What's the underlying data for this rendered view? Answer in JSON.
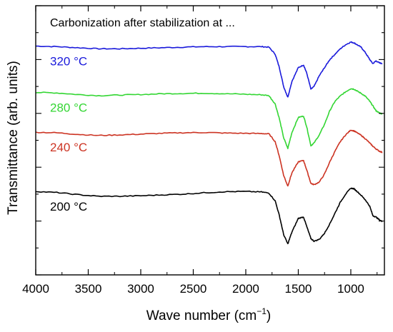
{
  "chart_data": {
    "type": "line",
    "title": "Carbonization after stabilization at ...",
    "xlabel": "Wave number (cm",
    "xlabel_superscript": "−1",
    "xlabel_suffix": ")",
    "ylabel": "Transmittance (arb. units)",
    "xlim": [
      4000,
      680
    ],
    "x_reversed": true,
    "ylim": [
      0,
      100
    ],
    "y_tick_labels_shown": false,
    "xticks": [
      "4000",
      "3500",
      "3000",
      "2500",
      "2000",
      "1500",
      "1000"
    ],
    "xtick_values": [
      4000,
      3500,
      3000,
      2500,
      2000,
      1500,
      1000
    ],
    "grid": false,
    "legend": "inline labels",
    "series": [
      {
        "name": "320 °C",
        "color": "#1a1adb",
        "x": [
          4000,
          3800,
          3600,
          3400,
          3200,
          3000,
          2800,
          2600,
          2400,
          2200,
          2000,
          1850,
          1780,
          1720,
          1680,
          1640,
          1600,
          1560,
          1500,
          1450,
          1420,
          1380,
          1350,
          1300,
          1250,
          1200,
          1150,
          1100,
          1050,
          1000,
          970,
          940,
          900,
          860,
          820,
          790,
          760,
          730,
          700
        ],
        "y": [
          85,
          84.8,
          84.4,
          84,
          84,
          84.2,
          84.4,
          84.6,
          84.8,
          84.8,
          84.8,
          84.8,
          84.6,
          82,
          77,
          70,
          66,
          72,
          77,
          78,
          75,
          69,
          70,
          74,
          77,
          80,
          82,
          84,
          85.5,
          86.5,
          86.2,
          85.5,
          84.5,
          82.5,
          80,
          78.5,
          79.5,
          78.8,
          78.5
        ]
      },
      {
        "name": "280 °C",
        "color": "#33d633",
        "x": [
          4000,
          3800,
          3600,
          3400,
          3200,
          3000,
          2800,
          2600,
          2400,
          2200,
          2000,
          1850,
          1780,
          1720,
          1680,
          1640,
          1600,
          1560,
          1500,
          1450,
          1420,
          1380,
          1350,
          1300,
          1250,
          1200,
          1150,
          1100,
          1050,
          1000,
          970,
          940,
          900,
          860,
          820,
          790,
          760,
          730,
          700
        ],
        "y": [
          67.8,
          67.6,
          67,
          66.6,
          66.8,
          67,
          67.3,
          67.4,
          67.5,
          67.3,
          67.1,
          66.9,
          66.6,
          63.5,
          58,
          51,
          47,
          53,
          58.5,
          59,
          55,
          48,
          49,
          52,
          56,
          61,
          64.5,
          66.5,
          68,
          69.2,
          69,
          68.3,
          67.4,
          66.3,
          64.5,
          62.8,
          61,
          60.2,
          59.8
        ]
      },
      {
        "name": "240 °C",
        "color": "#cc3322",
        "x": [
          4000,
          3800,
          3600,
          3400,
          3200,
          3000,
          2800,
          2600,
          2400,
          2200,
          2000,
          1850,
          1780,
          1720,
          1680,
          1640,
          1600,
          1560,
          1500,
          1450,
          1420,
          1380,
          1350,
          1300,
          1250,
          1200,
          1150,
          1100,
          1050,
          1000,
          970,
          940,
          900,
          860,
          820,
          790,
          760,
          730,
          700
        ],
        "y": [
          53,
          52.8,
          52.2,
          51.8,
          52,
          52.3,
          52.6,
          52.8,
          52.9,
          52.7,
          52.6,
          52.5,
          52.4,
          49.5,
          44,
          37,
          33,
          38,
          42,
          42.5,
          39,
          34,
          33.5,
          34.5,
          37.5,
          42,
          46,
          49.5,
          52,
          53.8,
          53.5,
          52.8,
          51.8,
          50.5,
          49,
          47.8,
          46.8,
          46,
          45.5
        ]
      },
      {
        "name": "200 °C",
        "color": "#000000",
        "x": [
          4000,
          3800,
          3600,
          3400,
          3200,
          3000,
          2800,
          2600,
          2400,
          2200,
          2000,
          1850,
          1780,
          1720,
          1680,
          1640,
          1600,
          1560,
          1500,
          1450,
          1420,
          1380,
          1350,
          1300,
          1250,
          1200,
          1150,
          1100,
          1050,
          1000,
          970,
          940,
          900,
          860,
          820,
          790,
          760,
          730,
          700
        ],
        "y": [
          31,
          30.6,
          29.8,
          29.2,
          29.2,
          29.4,
          29.7,
          30,
          30.5,
          30.9,
          31,
          30.8,
          30.4,
          27.5,
          22,
          15,
          11.5,
          16,
          21,
          21.5,
          18,
          13.5,
          12.5,
          13.2,
          15.5,
          19,
          23,
          27,
          30,
          32.2,
          32,
          31,
          29.5,
          27.8,
          25.5,
          22,
          21.5,
          20.5,
          19.8
        ]
      }
    ]
  }
}
